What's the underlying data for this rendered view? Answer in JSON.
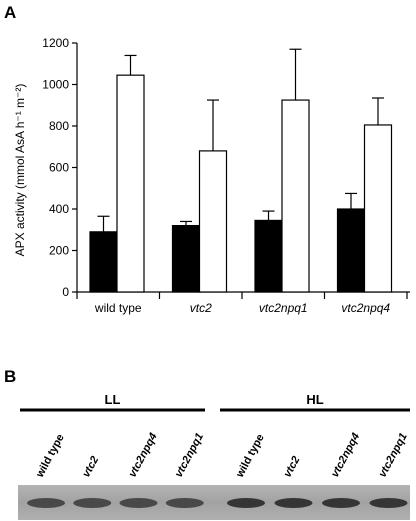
{
  "chart_data": {
    "type": "bar",
    "panel_label": "A",
    "y_label": "APX activity (mmol AsA h⁻¹ m⁻²)",
    "categories": [
      "wild type",
      "vtc2",
      "vtc2npq1",
      "vtc2npq4"
    ],
    "series": [
      {
        "color": "#000000",
        "values": [
          290,
          320,
          345,
          400
        ],
        "errors": [
          75,
          20,
          45,
          75
        ]
      },
      {
        "color": "#ffffff",
        "values": [
          1045,
          680,
          925,
          805
        ],
        "errors": [
          95,
          245,
          245,
          130
        ]
      }
    ],
    "ylim": [
      0,
      1200
    ],
    "yticks": [
      0,
      200,
      400,
      600,
      800,
      1000,
      1200
    ]
  },
  "blot": {
    "panel_label": "B",
    "groups": [
      {
        "label": "LL",
        "lanes": [
          "wild type",
          "vtc2",
          "vtc2npq4",
          "vtc2npq1"
        ]
      },
      {
        "label": "HL",
        "lanes": [
          "wild type",
          "vtc2",
          "vtc2npq4",
          "vtc2npq1"
        ]
      }
    ]
  }
}
